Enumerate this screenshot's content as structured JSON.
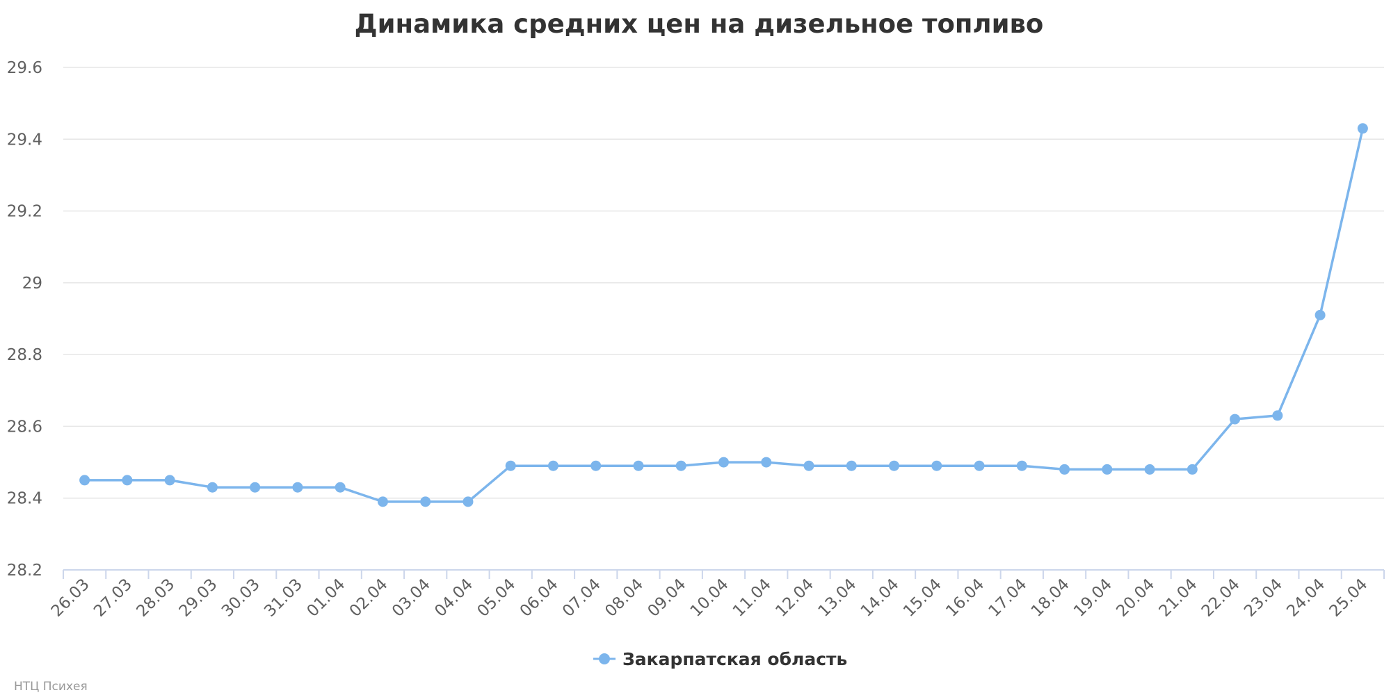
{
  "chart_data": {
    "type": "line",
    "title": "Динамика средних цен на дизельное топливо",
    "xlabel": "",
    "ylabel": "",
    "categories": [
      "26.03",
      "27.03",
      "28.03",
      "29.03",
      "30.03",
      "31.03",
      "01.04",
      "02.04",
      "03.04",
      "04.04",
      "05.04",
      "06.04",
      "07.04",
      "08.04",
      "09.04",
      "10.04",
      "11.04",
      "12.04",
      "13.04",
      "14.04",
      "15.04",
      "16.04",
      "17.04",
      "18.04",
      "19.04",
      "20.04",
      "21.04",
      "22.04",
      "23.04",
      "24.04",
      "25.04"
    ],
    "series": [
      {
        "name": "Закарпатская область",
        "color": "#7cb5ec",
        "values": [
          28.45,
          28.45,
          28.45,
          28.43,
          28.43,
          28.43,
          28.43,
          28.39,
          28.39,
          28.39,
          28.49,
          28.49,
          28.49,
          28.49,
          28.49,
          28.5,
          28.5,
          28.49,
          28.49,
          28.49,
          28.49,
          28.49,
          28.49,
          28.48,
          28.48,
          28.48,
          28.48,
          28.62,
          28.63,
          28.91,
          29.43
        ]
      }
    ],
    "ylim": [
      28.2,
      29.6
    ],
    "yticks": [
      "28.2",
      "28.4",
      "28.6",
      "28.8",
      "29",
      "29.2",
      "29.4",
      "29.6"
    ],
    "grid": true,
    "legend": "bottom-center",
    "credit": "НТЦ Психея"
  }
}
